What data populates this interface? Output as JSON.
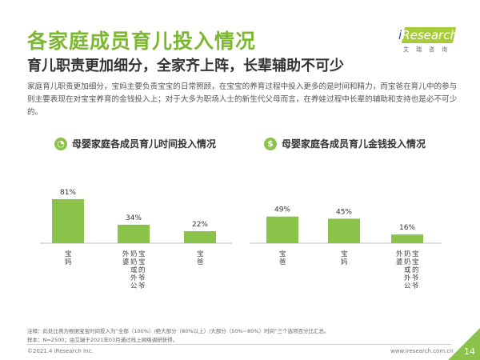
{
  "header": {
    "title": "各家庭成员育儿投入情况",
    "subtitle": "育儿职责更加细分，全家齐上阵，长辈辅助不可少",
    "description": "家庭育儿职责更加细分，宝妈主要负责宝宝的日常照顾，在宝宝的养育过程中投入更多的是时间和精力，而宝爸在育儿中的参与则主要表现在对宝宝养育的金钱投入上；对于大多为职场人士的新生代父母而言，在养娃过程中长辈的辅助和支持也是必不可少的。"
  },
  "logo": {
    "brand_i": "i",
    "brand_rest": "Research",
    "cn": "艾瑞咨询"
  },
  "icons": {
    "time": "clock-icon",
    "money": "money-bag-icon"
  },
  "colors": {
    "accent": "#7cb82f",
    "bar": "#8bc34a"
  },
  "chart_data": [
    {
      "type": "bar",
      "title": "母婴家庭各成员育儿时间投入情况",
      "categories": [
        "宝妈",
        "宝宝的爷爷奶奶或外公外婆",
        "宝爸"
      ],
      "values": [
        81,
        34,
        22
      ],
      "labels": [
        "81%",
        "34%",
        "22%"
      ],
      "ylim": [
        0,
        100
      ]
    },
    {
      "type": "bar",
      "title": "母婴家庭各成员育儿金钱投入情况",
      "categories": [
        "宝爸",
        "宝妈",
        "宝宝的爷爷奶奶或外公外婆"
      ],
      "values": [
        49,
        45,
        16
      ],
      "labels": [
        "49%",
        "45%",
        "16%"
      ],
      "ylim": [
        0,
        100
      ]
    }
  ],
  "footer": {
    "note": "注释：此处比例为根据宝宝时间投入为“全部（100%）/绝大部分（80%以上）/大部分（50%~80%）时间”三个选项百分比汇总。",
    "sample": "样本：N=2500；由艾瑞于2021年03月通过线上网络调研获得。",
    "copyright": "©2021.4 iResearch Inc.",
    "url": "www.iresearch.com.cn",
    "page": "14"
  }
}
